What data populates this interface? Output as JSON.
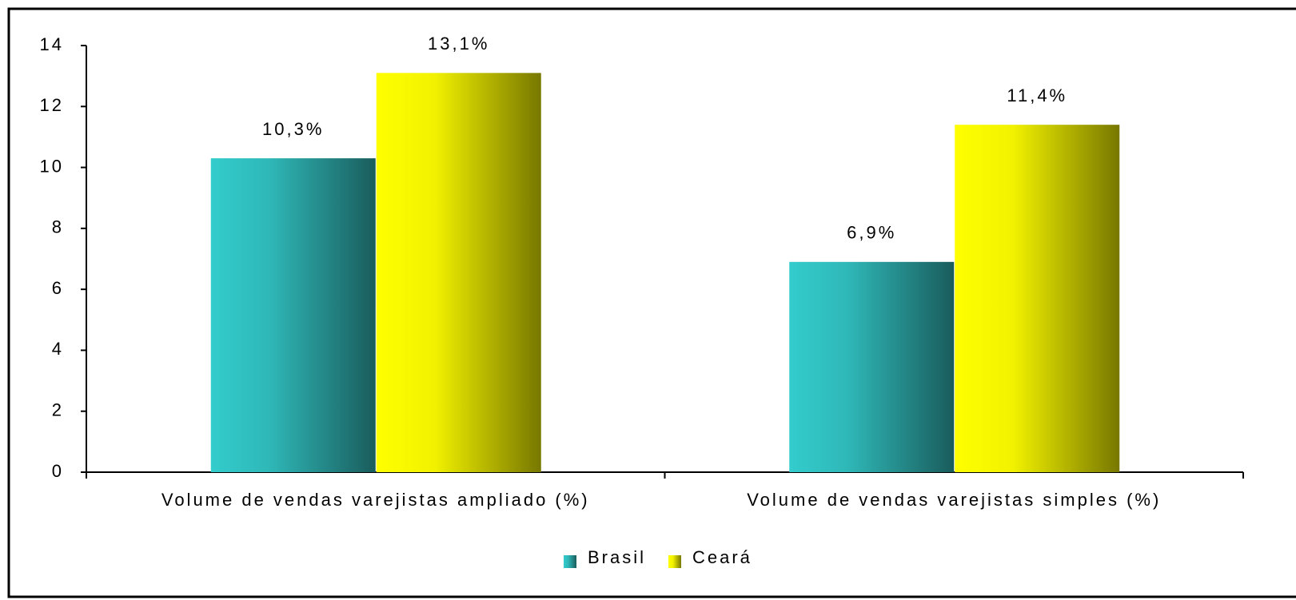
{
  "chart_data": {
    "type": "bar",
    "categories": [
      "Volume de vendas varejistas ampliado (%)",
      "Volume de vendas varejistas simples (%)"
    ],
    "series": [
      {
        "name": "Brasil",
        "color": "#33cccc",
        "values": [
          10.3,
          6.9
        ],
        "value_labels": [
          "10,3%",
          "6,9%"
        ]
      },
      {
        "name": "Ceará",
        "color": "#ffff00",
        "values": [
          13.1,
          11.4
        ],
        "value_labels": [
          "13,1%",
          "11,4%"
        ]
      }
    ],
    "ylim": [
      0,
      14
    ],
    "yticks": [
      0,
      2,
      4,
      6,
      8,
      10,
      12,
      14
    ],
    "legend": "bottom"
  }
}
